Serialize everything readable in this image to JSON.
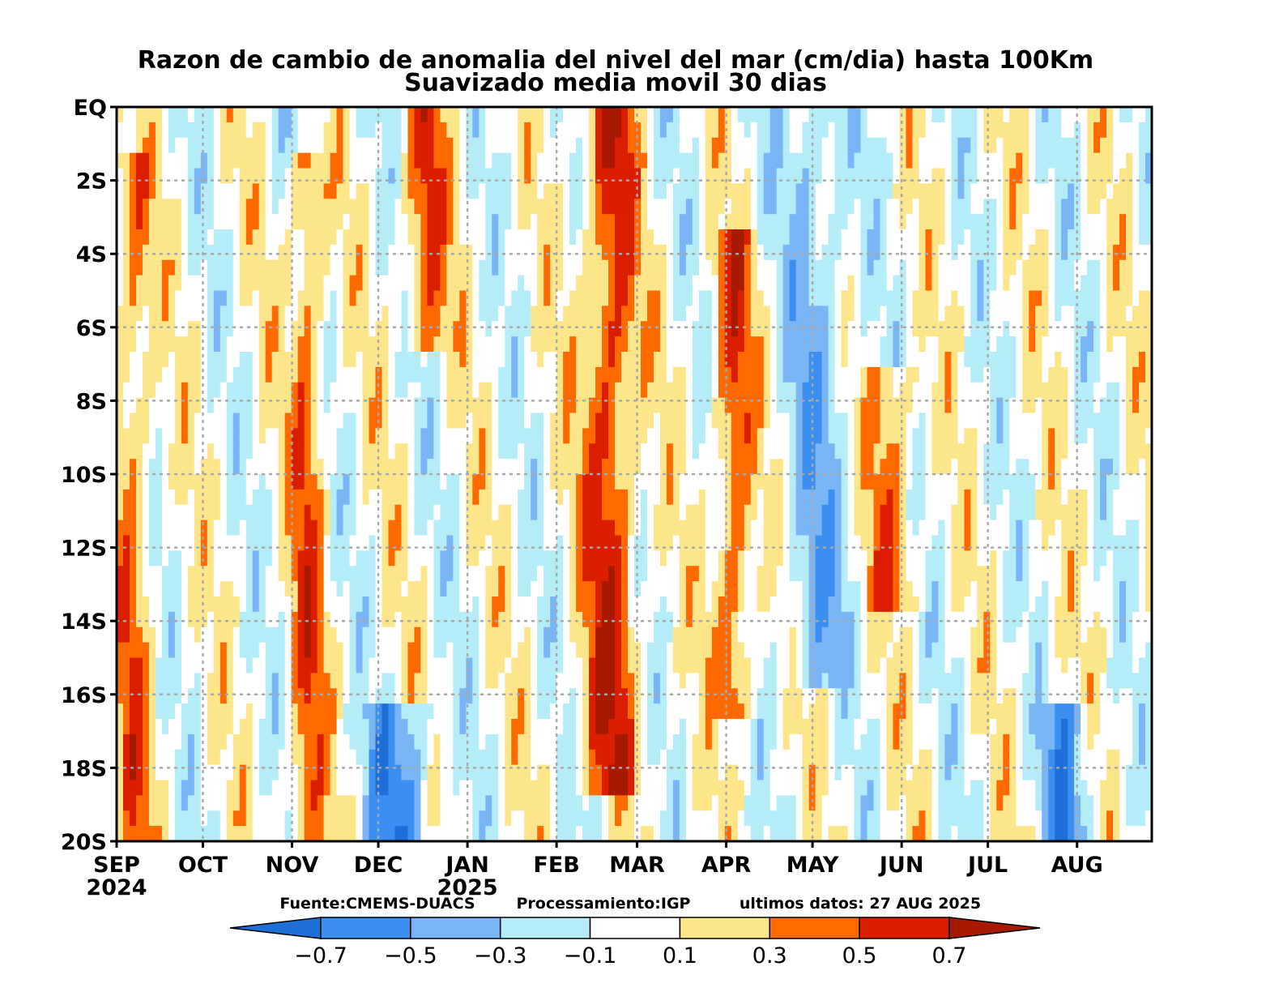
{
  "chart_data": {
    "type": "heatmap",
    "title": "Razon de cambio de anomalia del nivel del mar (cm/dia) hasta 100Km",
    "subtitle": "Suavizado media movil 30 dias",
    "x_axis": {
      "type": "time",
      "range": [
        "2024-09-01",
        "2025-08-27"
      ],
      "tick_labels": [
        {
          "label": "SEP",
          "year": "2024",
          "date": "2024-09-01"
        },
        {
          "label": "OCT",
          "year": "",
          "date": "2024-10-01"
        },
        {
          "label": "NOV",
          "year": "",
          "date": "2024-11-01"
        },
        {
          "label": "DEC",
          "year": "",
          "date": "2024-12-01"
        },
        {
          "label": "JAN",
          "year": "2025",
          "date": "2025-01-01"
        },
        {
          "label": "FEB",
          "year": "",
          "date": "2025-02-01"
        },
        {
          "label": "MAR",
          "year": "",
          "date": "2025-03-01"
        },
        {
          "label": "APR",
          "year": "",
          "date": "2025-04-01"
        },
        {
          "label": "MAY",
          "year": "",
          "date": "2025-05-01"
        },
        {
          "label": "JUN",
          "year": "",
          "date": "2025-06-01"
        },
        {
          "label": "JUL",
          "year": "",
          "date": "2025-07-01"
        },
        {
          "label": "AUG",
          "year": "",
          "date": "2025-08-01"
        }
      ]
    },
    "y_axis": {
      "range": [
        -20,
        0
      ],
      "tick_values": [
        0,
        -2,
        -4,
        -6,
        -8,
        -10,
        -12,
        -14,
        -16,
        -18,
        -20
      ],
      "tick_labels": [
        "EQ",
        "2S",
        "4S",
        "6S",
        "8S",
        "10S",
        "12S",
        "14S",
        "16S",
        "18S",
        "20S"
      ]
    },
    "grid": true,
    "contour_levels": [
      -0.7,
      -0.5,
      -0.3,
      -0.1,
      0.1,
      0.3,
      0.5,
      0.7
    ],
    "colorbar": {
      "labels": [
        "−0.7",
        "−0.5",
        "−0.3",
        "−0.1",
        "0.1",
        "0.3",
        "0.5",
        "0.7"
      ],
      "colors": [
        "#1e6fd8",
        "#3a8ff0",
        "#7ab6f5",
        "#b4ecf8",
        "#ffffff",
        "#fde68a",
        "#ff6a00",
        "#dc1e00",
        "#a81a00"
      ]
    },
    "features": [
      {
        "name": "strong positive band",
        "date_start": "2025-02-10",
        "date_end": "2025-03-01",
        "lat_top": 0,
        "lat_bottom": -18,
        "value": 0.6
      },
      {
        "name": "positive band",
        "date_start": "2025-03-28",
        "date_end": "2025-04-10",
        "lat_top": -4,
        "lat_bottom": -16,
        "value": 0.5
      },
      {
        "name": "positive band",
        "date_start": "2024-11-01",
        "date_end": "2024-11-12",
        "lat_top": -2,
        "lat_bottom": -20,
        "value": 0.45
      },
      {
        "name": "positive band",
        "date_start": "2024-12-10",
        "date_end": "2024-12-25",
        "lat_top": 0,
        "lat_bottom": -6,
        "value": 0.45
      },
      {
        "name": "positive band",
        "date_start": "2024-09-01",
        "date_end": "2024-09-12",
        "lat_top": -2,
        "lat_bottom": -20,
        "value": 0.4
      },
      {
        "name": "positive band",
        "date_start": "2025-05-20",
        "date_end": "2025-06-05",
        "lat_top": -8,
        "lat_bottom": -13,
        "value": 0.4
      },
      {
        "name": "negative band",
        "date_start": "2024-11-25",
        "date_end": "2024-12-20",
        "lat_top": -17,
        "lat_bottom": -20,
        "value": -0.55
      },
      {
        "name": "negative band",
        "date_start": "2025-07-20",
        "date_end": "2025-08-05",
        "lat_top": -17,
        "lat_bottom": -20,
        "value": -0.55
      },
      {
        "name": "negative band",
        "date_start": "2025-04-20",
        "date_end": "2025-05-15",
        "lat_top": 0,
        "lat_bottom": -15,
        "value": -0.35
      }
    ]
  },
  "footer": {
    "source": "Fuente:CMEMS-DUACS",
    "processing": "Processamiento:IGP",
    "last_data": "ultimos datos: 27 AUG 2025"
  },
  "style": {
    "background": "#ffffff",
    "frame": "#000000",
    "grid": "#a8a8a8"
  }
}
